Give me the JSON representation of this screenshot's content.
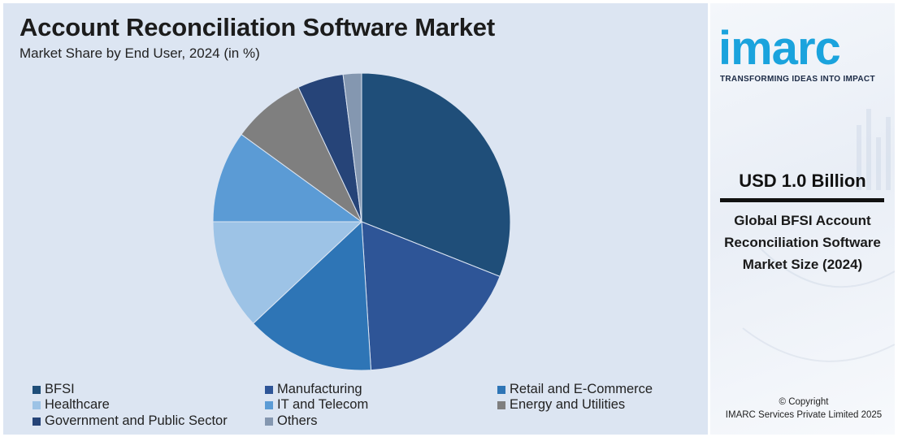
{
  "chart_data": {
    "type": "pie",
    "title": "Account Reconciliation Software Market",
    "subtitle": "Market Share by End User, 2024 (in %)",
    "categories": [
      "BFSI",
      "Manufacturing",
      "Retail and E-Commerce",
      "Healthcare",
      "IT and Telecom",
      "Energy and Utilities",
      "Government and Public Sector",
      "Others"
    ],
    "values": [
      31,
      18,
      14,
      12,
      10,
      8,
      5,
      2
    ],
    "colors": [
      "#1f4e79",
      "#2e5597",
      "#2e75b6",
      "#9dc3e6",
      "#5b9bd5",
      "#7f7f7f",
      "#264478",
      "#8497b0"
    ],
    "legend": "bottom"
  },
  "brand": {
    "logo_text": "imarc",
    "tagline": "TRANSFORMING IDEAS INTO IMPACT",
    "accent": "#1aa3dd"
  },
  "highlight": {
    "value": "USD 1.0 Billion",
    "description": "Global BFSI Account Reconciliation Software Market Size (2024)"
  },
  "footer": {
    "copyright_line1": "© Copyright",
    "copyright_line2": "IMARC Services Private Limited 2025"
  }
}
